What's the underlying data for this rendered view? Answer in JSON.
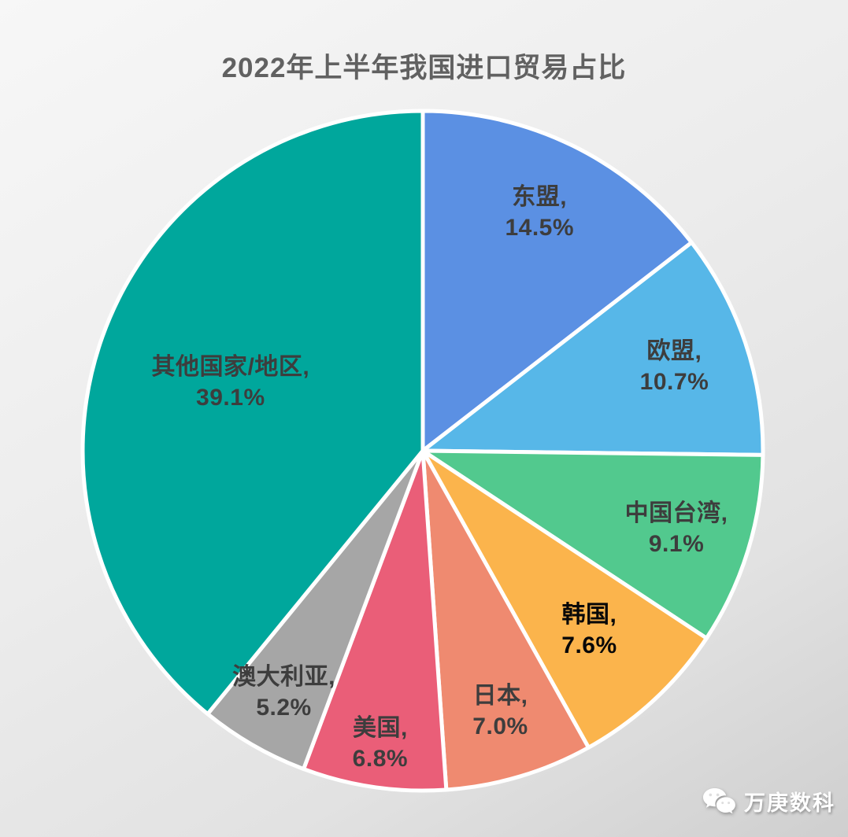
{
  "page": {
    "title": "2022年上半年我国进口贸易占比"
  },
  "watermark": {
    "text": "万庚数科",
    "icon": "wechat-icon"
  },
  "chart_data": {
    "type": "pie",
    "title": "2022年上半年我国进口贸易占比",
    "unit": "%",
    "start_angle_deg": 0,
    "direction": "clockwise",
    "legend": "none",
    "label_format": "<name>, <value>%",
    "slice_border": {
      "color": "#ffffff",
      "width": 5
    },
    "slices": [
      {
        "label": "东盟",
        "value": 14.5,
        "color": "#5b90e3",
        "label_color": "#3d3d3d",
        "label_r": 0.78
      },
      {
        "label": "欧盟",
        "value": 10.7,
        "color": "#57b7e8",
        "label_color": "#3d3d3d",
        "label_r": 0.78
      },
      {
        "label": "中国台湾",
        "value": 9.1,
        "color": "#52c98e",
        "label_color": "#3d3d3d",
        "label_r": 0.78
      },
      {
        "label": "韩国",
        "value": 7.6,
        "color": "#fbb44c",
        "label_color": "#080808",
        "label_r": 0.72
      },
      {
        "label": "日本",
        "value": 7.0,
        "color": "#ef8a70",
        "label_color": "#3d3d3d",
        "label_r": 0.8
      },
      {
        "label": "美国",
        "value": 6.8,
        "color": "#ea5e78",
        "label_color": "#3d3d3d",
        "label_r": 0.87
      },
      {
        "label": "澳大利亚",
        "value": 5.2,
        "color": "#a6a6a6",
        "label_color": "#3d3d3d",
        "label_r": 0.82
      },
      {
        "label": "其他国家/地区",
        "value": 39.1,
        "color": "#00a79c",
        "label_color": "#3d3d3d",
        "label_r": 0.6
      }
    ]
  }
}
